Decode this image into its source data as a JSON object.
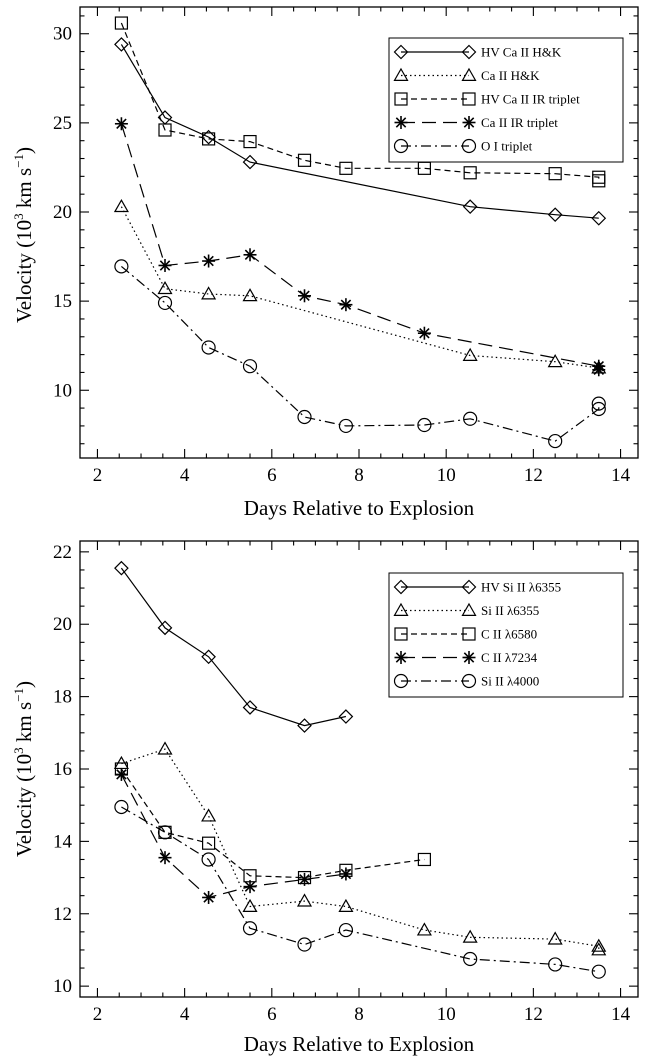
{
  "chart_data": [
    {
      "type": "line",
      "xlabel": "Days Relative to Explosion",
      "ylabel_main": "Velocity (10",
      "ylabel_sup1": "3",
      "ylabel_mid": " km s",
      "ylabel_sup2": "−1",
      "ylabel_end": ")",
      "xlim": [
        1.6,
        14.4
      ],
      "ylim": [
        6.2,
        31.5
      ],
      "xticks": [
        2,
        4,
        6,
        8,
        10,
        12,
        14
      ],
      "yticks": [
        10,
        15,
        20,
        25,
        30
      ],
      "legend_position": "top-right",
      "series": [
        {
          "name": "HV Ca II H&K",
          "marker": "diamond",
          "dash": "solid",
          "x": [
            2.55,
            3.55,
            4.55,
            5.5,
            10.55,
            12.5,
            13.5
          ],
          "y": [
            29.4,
            25.3,
            24.2,
            22.8,
            20.3,
            19.85,
            19.65
          ]
        },
        {
          "name": "Ca II H&K",
          "marker": "triangle",
          "dash": "dotted",
          "x": [
            2.55,
            3.55,
            4.55,
            5.5,
            10.55,
            12.5,
            13.5
          ],
          "y": [
            20.3,
            15.7,
            15.4,
            15.3,
            11.95,
            11.6,
            11.25
          ]
        },
        {
          "name": "HV Ca II IR triplet",
          "marker": "square",
          "dash": "short",
          "x": [
            2.55,
            3.55,
            4.55,
            5.5,
            6.75,
            7.7,
            9.5,
            10.55,
            12.5,
            13.5,
            13.5
          ],
          "y": [
            30.6,
            24.6,
            24.1,
            23.95,
            22.9,
            22.45,
            22.45,
            22.2,
            22.15,
            21.95,
            21.75
          ]
        },
        {
          "name": "Ca II IR triplet",
          "marker": "star",
          "dash": "long",
          "x": [
            2.55,
            3.55,
            4.55,
            5.5,
            6.75,
            7.7,
            9.5,
            13.5,
            13.5
          ],
          "y": [
            24.95,
            17.0,
            17.25,
            17.6,
            15.3,
            14.8,
            13.2,
            11.35,
            11.15
          ]
        },
        {
          "name": "O I triplet",
          "marker": "circle",
          "dash": "dashdot",
          "x": [
            2.55,
            3.55,
            4.55,
            5.5,
            6.75,
            7.7,
            9.5,
            10.55,
            12.5,
            13.5,
            13.5
          ],
          "y": [
            16.95,
            14.9,
            12.4,
            11.35,
            8.5,
            8.0,
            8.05,
            8.4,
            7.15,
            8.95,
            9.25
          ]
        }
      ]
    },
    {
      "type": "line",
      "xlabel": "Days Relative to Explosion",
      "ylabel_main": "Velocity (10",
      "ylabel_sup1": "3",
      "ylabel_mid": " km s",
      "ylabel_sup2": "−1",
      "ylabel_end": ")",
      "xlim": [
        1.6,
        14.4
      ],
      "ylim": [
        9.7,
        22.3
      ],
      "xticks": [
        2,
        4,
        6,
        8,
        10,
        12,
        14
      ],
      "yticks": [
        10,
        12,
        14,
        16,
        18,
        20,
        22
      ],
      "legend_position": "top-right",
      "series": [
        {
          "name": "HV Si II λ6355",
          "marker": "diamond",
          "dash": "solid",
          "x": [
            2.55,
            3.55,
            4.55,
            5.5,
            6.75,
            7.7
          ],
          "y": [
            21.55,
            19.9,
            19.1,
            17.7,
            17.2,
            17.45
          ]
        },
        {
          "name": "Si II λ6355",
          "marker": "triangle",
          "dash": "dotted",
          "x": [
            2.55,
            3.55,
            4.55,
            5.5,
            6.75,
            7.7,
            9.5,
            10.55,
            12.5,
            13.5,
            13.5
          ],
          "y": [
            16.15,
            16.55,
            14.7,
            12.2,
            12.35,
            12.2,
            11.55,
            11.35,
            11.3,
            11.1,
            11.0
          ]
        },
        {
          "name": "C II λ6580",
          "marker": "square",
          "dash": "short",
          "x": [
            2.55,
            3.55,
            4.55,
            5.5,
            6.75,
            7.7,
            9.5
          ],
          "y": [
            16.0,
            14.25,
            13.95,
            13.05,
            13.0,
            13.2,
            13.5
          ]
        },
        {
          "name": "C II λ7234",
          "marker": "star",
          "dash": "long",
          "x": [
            2.55,
            3.55,
            4.55,
            5.5,
            6.75,
            7.7
          ],
          "y": [
            15.85,
            13.55,
            12.45,
            12.75,
            12.95,
            13.1
          ]
        },
        {
          "name": "Si II λ4000",
          "marker": "circle",
          "dash": "dashdot",
          "x": [
            2.55,
            3.55,
            4.55,
            5.5,
            6.75,
            7.7,
            10.55,
            12.5,
            13.5
          ],
          "y": [
            14.95,
            14.25,
            13.5,
            11.6,
            11.15,
            11.55,
            10.75,
            10.6,
            10.4
          ]
        }
      ]
    }
  ]
}
